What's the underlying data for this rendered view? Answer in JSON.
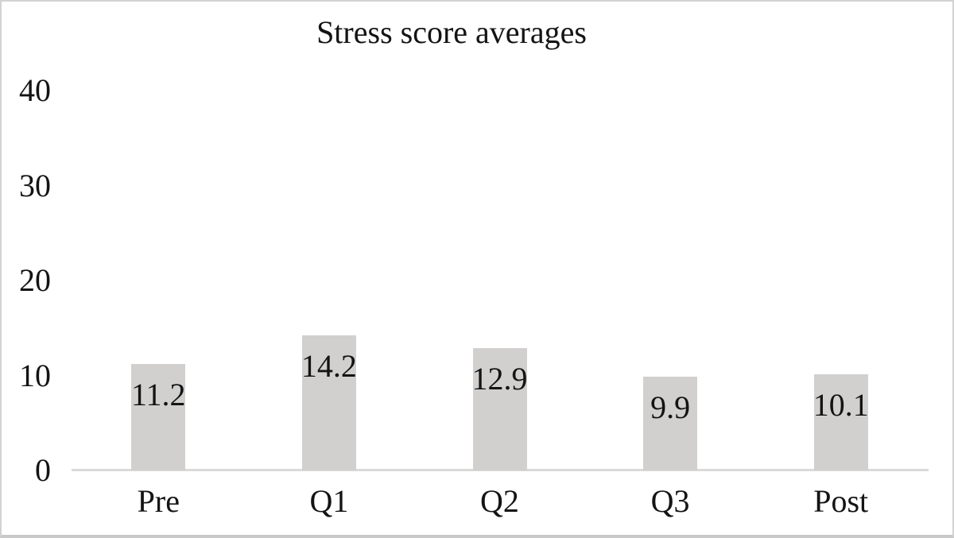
{
  "chart_data": {
    "type": "bar",
    "title": "Stress score averages",
    "categories": [
      "Pre",
      "Q1",
      "Q2",
      "Q3",
      "Post"
    ],
    "values": [
      11.2,
      14.2,
      12.9,
      9.9,
      10.1
    ],
    "data_labels": [
      "11.2",
      "14.2",
      "12.9",
      "9.9",
      "10.1"
    ],
    "xlabel": "",
    "ylabel": "",
    "y_ticks": [
      40,
      30,
      20,
      10,
      0
    ],
    "ylim": [
      0,
      40
    ],
    "grid": false,
    "legend_position": "none",
    "data_label_position": "inside-end",
    "bar_color": "#d2cfcf",
    "axis_line_color": "#dadada",
    "text_color": "#141414",
    "background_color": "#ffffff",
    "frame_border_color": "#d2d2d2"
  }
}
